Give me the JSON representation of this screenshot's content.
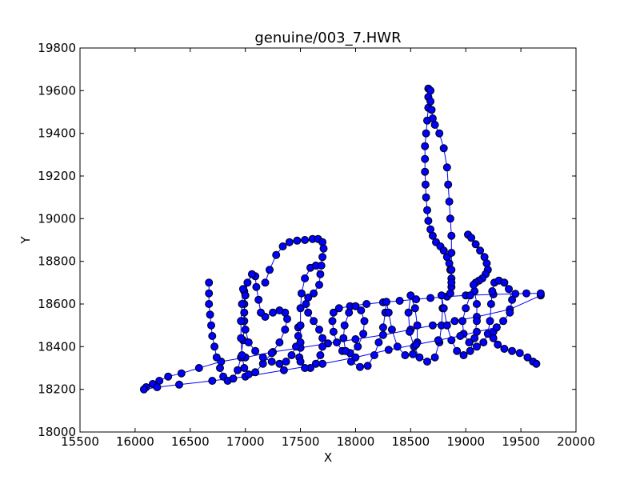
{
  "chart_data": {
    "type": "scatter",
    "title": "genuine/003_7.HWR",
    "xlabel": "X",
    "ylabel": "Y",
    "xlim": [
      15500,
      20000
    ],
    "ylim": [
      18000,
      19800
    ],
    "xticks": [
      15500,
      16000,
      16500,
      17000,
      17500,
      18000,
      18500,
      19000,
      19500,
      20000
    ],
    "yticks": [
      18000,
      18200,
      18400,
      18600,
      18800,
      19000,
      19200,
      19400,
      19600,
      19800
    ],
    "grid": false,
    "legend": false,
    "marker_color": "#0000ff",
    "marker_edge_color": "#000000",
    "line_color": "#0000ff",
    "series": [
      {
        "points": [
          [
            16100,
            18210
          ],
          [
            16160,
            18225
          ],
          [
            16220,
            18240
          ],
          [
            16300,
            18260
          ],
          [
            16420,
            18275
          ],
          [
            16580,
            18300
          ],
          [
            16780,
            18330
          ],
          [
            17000,
            18350
          ],
          [
            17250,
            18375
          ],
          [
            17500,
            18395
          ],
          [
            17750,
            18415
          ],
          [
            18000,
            18435
          ],
          [
            18250,
            18455
          ],
          [
            18500,
            18480
          ],
          [
            18700,
            18500
          ],
          [
            18900,
            18520
          ],
          [
            19100,
            18540
          ],
          [
            19400,
            18575
          ],
          [
            19680,
            18640
          ],
          [
            19680,
            18650
          ],
          [
            19550,
            18650
          ],
          [
            19450,
            18648
          ],
          [
            19250,
            18645
          ],
          [
            19000,
            18640
          ],
          [
            18830,
            18635
          ],
          [
            18680,
            18628
          ],
          [
            18550,
            18622
          ],
          [
            18400,
            18615
          ],
          [
            18250,
            18608
          ],
          [
            18100,
            18600
          ],
          [
            17950,
            18590
          ],
          [
            17850,
            18580
          ],
          [
            17800,
            18560
          ],
          [
            17790,
            18520
          ],
          [
            17800,
            18470
          ],
          [
            17830,
            18420
          ],
          [
            17880,
            18380
          ],
          [
            17950,
            18370
          ],
          [
            18020,
            18400
          ],
          [
            18070,
            18460
          ],
          [
            18080,
            18520
          ],
          [
            18050,
            18570
          ],
          [
            18000,
            18590
          ],
          [
            17940,
            18560
          ],
          [
            17900,
            18500
          ],
          [
            17890,
            18440
          ],
          [
            17910,
            18380
          ],
          [
            17960,
            18330
          ],
          [
            18040,
            18305
          ],
          [
            18110,
            18310
          ],
          [
            18170,
            18360
          ],
          [
            18210,
            18420
          ],
          [
            18250,
            18490
          ],
          [
            18270,
            18560
          ],
          [
            18280,
            18610
          ],
          [
            18300,
            18560
          ],
          [
            18330,
            18480
          ],
          [
            18380,
            18400
          ],
          [
            18450,
            18360
          ],
          [
            18520,
            18365
          ],
          [
            18560,
            18420
          ],
          [
            18560,
            18500
          ],
          [
            18540,
            18580
          ],
          [
            18500,
            18640
          ],
          [
            18480,
            18560
          ],
          [
            18490,
            18470
          ],
          [
            18530,
            18400
          ],
          [
            18580,
            18350
          ],
          [
            18650,
            18330
          ],
          [
            18720,
            18350
          ],
          [
            18760,
            18420
          ],
          [
            18780,
            18500
          ],
          [
            18790,
            18580
          ],
          [
            18780,
            18640
          ],
          [
            18800,
            18580
          ],
          [
            18830,
            18500
          ],
          [
            18870,
            18430
          ],
          [
            18920,
            18380
          ],
          [
            18980,
            18360
          ],
          [
            19040,
            18380
          ],
          [
            19080,
            18440
          ],
          [
            19100,
            18520
          ],
          [
            19100,
            18600
          ],
          [
            19080,
            18660
          ],
          [
            19040,
            18640
          ],
          [
            19000,
            18580
          ],
          [
            18970,
            18520
          ],
          [
            18980,
            18460
          ],
          [
            19030,
            18420
          ],
          [
            19100,
            18400
          ],
          [
            19160,
            18420
          ],
          [
            19200,
            18460
          ],
          [
            19220,
            18520
          ],
          [
            19230,
            18600
          ],
          [
            19240,
            18660
          ],
          [
            19260,
            18700
          ],
          [
            19300,
            18710
          ],
          [
            19350,
            18700
          ],
          [
            19390,
            18670
          ],
          [
            19420,
            18620
          ],
          [
            19400,
            18560
          ],
          [
            19340,
            18520
          ],
          [
            19280,
            18490
          ],
          [
            19250,
            18470
          ],
          [
            19250,
            18440
          ],
          [
            19290,
            18410
          ],
          [
            19350,
            18390
          ],
          [
            19420,
            18380
          ],
          [
            19490,
            18370
          ],
          [
            19560,
            18350
          ],
          [
            19610,
            18330
          ],
          [
            19640,
            18320
          ]
        ]
      },
      {
        "points": [
          [
            16080,
            18200
          ],
          [
            16200,
            18210
          ],
          [
            16400,
            18222
          ],
          [
            16700,
            18240
          ],
          [
            17000,
            18260
          ],
          [
            17350,
            18290
          ],
          [
            17700,
            18320
          ],
          [
            18000,
            18350
          ],
          [
            18300,
            18385
          ],
          [
            18550,
            18410
          ],
          [
            18750,
            18430
          ],
          [
            18950,
            18450
          ],
          [
            19100,
            18470
          ],
          [
            19280,
            18490
          ]
        ]
      },
      {
        "points": [
          [
            16670,
            18700
          ],
          [
            16670,
            18650
          ],
          [
            16670,
            18600
          ],
          [
            16680,
            18550
          ],
          [
            16690,
            18500
          ],
          [
            16700,
            18450
          ],
          [
            16720,
            18400
          ],
          [
            16740,
            18350
          ],
          [
            16770,
            18300
          ],
          [
            16800,
            18260
          ],
          [
            16840,
            18240
          ],
          [
            16890,
            18250
          ],
          [
            16930,
            18290
          ],
          [
            16960,
            18350
          ],
          [
            16980,
            18430
          ],
          [
            16990,
            18520
          ],
          [
            16990,
            18600
          ],
          [
            16990,
            18660
          ],
          [
            16980,
            18670
          ],
          [
            16970,
            18600
          ],
          [
            16960,
            18520
          ],
          [
            16960,
            18440
          ],
          [
            16970,
            18360
          ],
          [
            16990,
            18300
          ],
          [
            17030,
            18270
          ],
          [
            17090,
            18280
          ],
          [
            17160,
            18320
          ],
          [
            17240,
            18370
          ],
          [
            17310,
            18420
          ],
          [
            17360,
            18480
          ],
          [
            17380,
            18530
          ],
          [
            17360,
            18560
          ],
          [
            17310,
            18570
          ],
          [
            17250,
            18560
          ],
          [
            17180,
            18540
          ],
          [
            17140,
            18560
          ],
          [
            17120,
            18620
          ],
          [
            17100,
            18680
          ],
          [
            17090,
            18730
          ],
          [
            17060,
            18740
          ],
          [
            17020,
            18700
          ],
          [
            17000,
            18640
          ],
          [
            16990,
            18560
          ],
          [
            17000,
            18480
          ],
          [
            17030,
            18420
          ],
          [
            17090,
            18380
          ],
          [
            17160,
            18350
          ],
          [
            17240,
            18330
          ],
          [
            17310,
            18320
          ],
          [
            17370,
            18330
          ],
          [
            17420,
            18360
          ],
          [
            17460,
            18400
          ],
          [
            17480,
            18450
          ],
          [
            17480,
            18490
          ]
        ]
      },
      {
        "points": [
          [
            17490,
            18350
          ],
          [
            17500,
            18420
          ],
          [
            17500,
            18500
          ],
          [
            17500,
            18580
          ],
          [
            17510,
            18650
          ],
          [
            17540,
            18720
          ],
          [
            17590,
            18770
          ],
          [
            17640,
            18780
          ],
          [
            17680,
            18740
          ],
          [
            17670,
            18690
          ],
          [
            17620,
            18650
          ],
          [
            17570,
            18630
          ],
          [
            17550,
            18600
          ],
          [
            17570,
            18560
          ],
          [
            17620,
            18520
          ],
          [
            17670,
            18480
          ],
          [
            17700,
            18440
          ],
          [
            17700,
            18400
          ],
          [
            17680,
            18360
          ],
          [
            17640,
            18320
          ],
          [
            17590,
            18300
          ],
          [
            17540,
            18300
          ],
          [
            17500,
            18330
          ]
        ]
      },
      {
        "points": [
          [
            17180,
            18700
          ],
          [
            17220,
            18760
          ],
          [
            17280,
            18830
          ],
          [
            17340,
            18870
          ],
          [
            17400,
            18890
          ],
          [
            17470,
            18897
          ],
          [
            17540,
            18900
          ],
          [
            17610,
            18905
          ],
          [
            17660,
            18905
          ],
          [
            17700,
            18890
          ],
          [
            17710,
            18860
          ],
          [
            17700,
            18820
          ],
          [
            17690,
            18780
          ]
        ]
      },
      {
        "points": [
          [
            18660,
            19610
          ],
          [
            18660,
            19570
          ],
          [
            18660,
            19520
          ],
          [
            18650,
            19460
          ],
          [
            18640,
            19400
          ],
          [
            18630,
            19340
          ],
          [
            18630,
            19280
          ],
          [
            18630,
            19220
          ],
          [
            18635,
            19160
          ],
          [
            18640,
            19100
          ],
          [
            18650,
            19040
          ],
          [
            18660,
            18990
          ],
          [
            18680,
            18950
          ],
          [
            18700,
            18920
          ],
          [
            18730,
            18890
          ],
          [
            18770,
            18870
          ],
          [
            18800,
            18850
          ],
          [
            18830,
            18820
          ],
          [
            18850,
            18790
          ],
          [
            18860,
            18760
          ],
          [
            18870,
            18720
          ],
          [
            18870,
            18680
          ],
          [
            18860,
            18650
          ],
          [
            18870,
            18700
          ],
          [
            18870,
            18760
          ],
          [
            18870,
            18840
          ],
          [
            18870,
            18920
          ],
          [
            18860,
            19000
          ],
          [
            18850,
            19080
          ],
          [
            18840,
            19160
          ],
          [
            18830,
            19240
          ],
          [
            18800,
            19330
          ],
          [
            18760,
            19400
          ],
          [
            18720,
            19440
          ],
          [
            18700,
            19470
          ],
          [
            18690,
            19510
          ],
          [
            18680,
            19550
          ],
          [
            18680,
            19600
          ]
        ]
      },
      {
        "points": [
          [
            19020,
            18925
          ],
          [
            19050,
            18910
          ],
          [
            19090,
            18880
          ],
          [
            19130,
            18850
          ],
          [
            19170,
            18820
          ],
          [
            19190,
            18790
          ],
          [
            19200,
            18760
          ],
          [
            19180,
            18740
          ],
          [
            19150,
            18720
          ],
          [
            19120,
            18710
          ],
          [
            19090,
            18700
          ],
          [
            19070,
            18690
          ]
        ]
      }
    ]
  }
}
